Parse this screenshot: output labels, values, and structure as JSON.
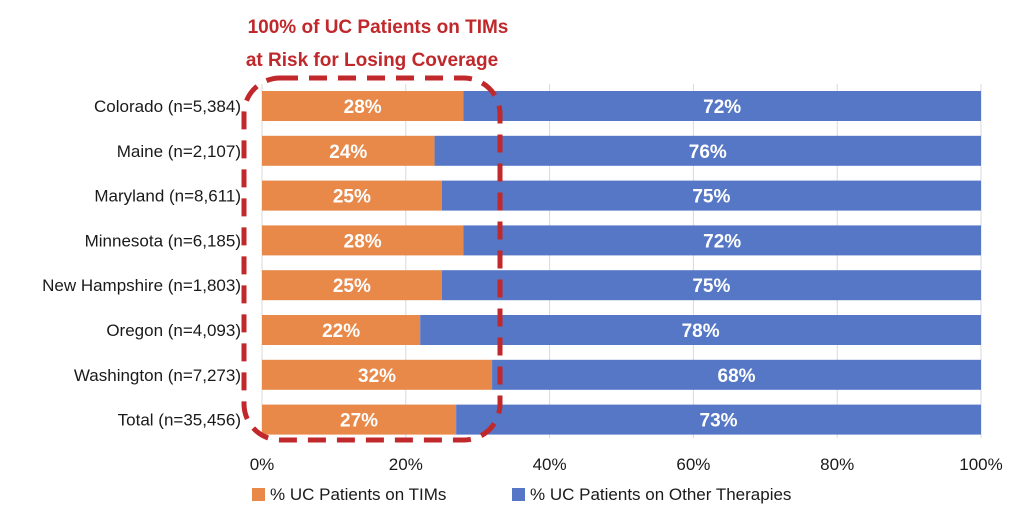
{
  "colors": {
    "tims": "#E8894A",
    "other": "#5577C6",
    "annotation": "#C0282B",
    "grid": "#d9d9d9"
  },
  "annotation": {
    "line1": "100% of UC Patients on TIMs",
    "line2": "at Risk for Losing Coverage"
  },
  "chart_data": {
    "type": "bar",
    "orientation": "horizontal",
    "stacked": true,
    "categories": [
      "Colorado (n=5,384)",
      "Maine (n=2,107)",
      "Maryland (n=8,611)",
      "Minnesota (n=6,185)",
      "New Hampshire (n=1,803)",
      "Oregon (n=4,093)",
      "Washington (n=7,273)",
      "Total (n=35,456)"
    ],
    "series": [
      {
        "name": "% UC Patients on TIMs",
        "values": [
          28,
          24,
          25,
          28,
          25,
          22,
          32,
          27
        ],
        "labels": [
          "28%",
          "24%",
          "25%",
          "28%",
          "25%",
          "22%",
          "32%",
          "27%"
        ]
      },
      {
        "name": "% UC Patients on Other Therapies",
        "values": [
          72,
          76,
          75,
          72,
          75,
          78,
          68,
          73
        ],
        "labels": [
          "72%",
          "76%",
          "75%",
          "72%",
          "75%",
          "78%",
          "68%",
          "73%"
        ]
      }
    ],
    "xlim": [
      0,
      100
    ],
    "xticks": [
      "0%",
      "20%",
      "40%",
      "60%",
      "80%",
      "100%"
    ],
    "grid": true,
    "legend_position": "bottom"
  }
}
